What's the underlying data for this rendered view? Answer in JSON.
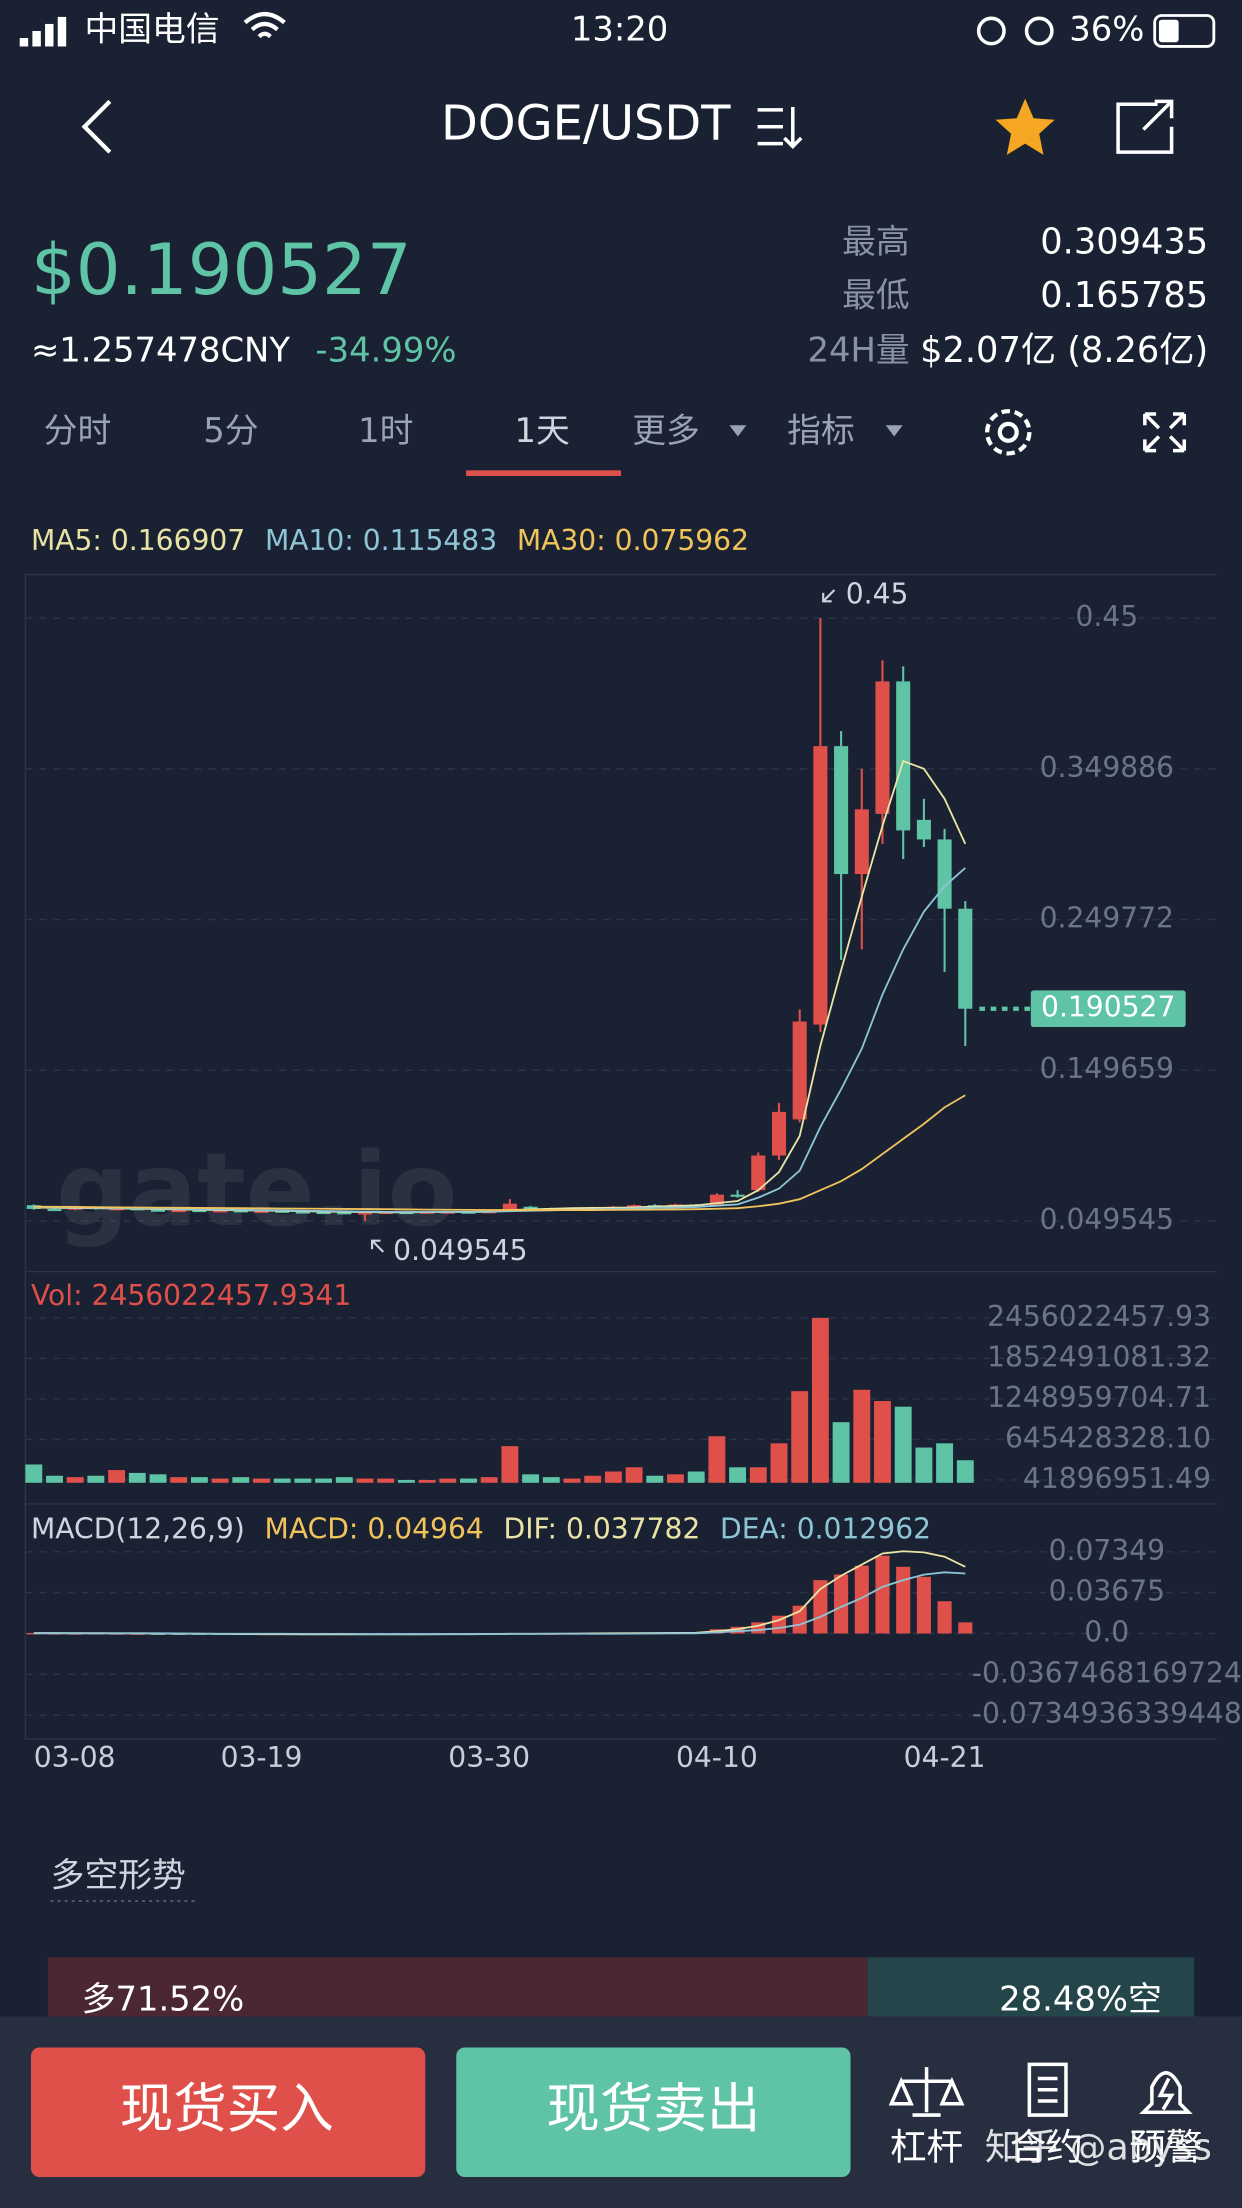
{
  "status_bar": {
    "carrier": "中国电信",
    "time": "13:20",
    "battery": "36%"
  },
  "header": {
    "title": "DOGE/USDT"
  },
  "ticker": {
    "price": "$0.190527",
    "cny": "≈1.257478CNY",
    "change": "-34.99%",
    "stats": [
      {
        "label": "最高",
        "value": "0.309435"
      },
      {
        "label": "最低",
        "value": "0.165785"
      },
      {
        "label": "24H量",
        "value": "$2.07亿 (8.26亿)"
      }
    ]
  },
  "tabs": [
    "分时",
    "5分",
    "1时",
    "1天",
    "更多",
    "指标"
  ],
  "chart_data": [
    {
      "type": "candlestick",
      "watermark": "gate.io",
      "up_color": "#e0504a",
      "down_color": "#5ec4a5",
      "grid": true,
      "categories": [
        "03-08",
        null,
        null,
        null,
        null,
        null,
        null,
        null,
        null,
        null,
        null,
        "03-19",
        null,
        null,
        null,
        null,
        null,
        null,
        null,
        null,
        null,
        null,
        "03-30",
        null,
        null,
        null,
        null,
        null,
        null,
        null,
        null,
        null,
        null,
        "04-10",
        null,
        null,
        null,
        null,
        null,
        null,
        null,
        null,
        null,
        null,
        "04-21",
        null
      ],
      "open": [
        0.06,
        0.0575,
        0.057,
        0.059,
        0.0575,
        0.058,
        0.057,
        0.0565,
        0.0568,
        0.0562,
        0.0566,
        0.056,
        0.0563,
        0.0558,
        0.0555,
        0.0553,
        0.0548,
        0.0552,
        0.0555,
        0.0553,
        0.0556,
        0.0557,
        0.0555,
        0.056,
        0.059,
        0.058,
        0.0575,
        0.0578,
        0.0585,
        0.059,
        0.06,
        0.0598,
        0.0605,
        0.0598,
        0.067,
        0.07,
        0.093,
        0.117,
        0.18,
        0.365,
        0.28,
        0.32,
        0.408,
        0.316,
        0.303,
        0.257
      ],
      "high": [
        0.0605,
        0.058,
        0.0595,
        0.0592,
        0.0585,
        0.0583,
        0.0573,
        0.0572,
        0.057,
        0.0569,
        0.0568,
        0.0565,
        0.0565,
        0.056,
        0.0558,
        0.0556,
        0.0555,
        0.0558,
        0.0558,
        0.0559,
        0.056,
        0.056,
        0.0563,
        0.064,
        0.0595,
        0.0583,
        0.0582,
        0.059,
        0.0595,
        0.0605,
        0.0606,
        0.061,
        0.0608,
        0.068,
        0.07,
        0.095,
        0.128,
        0.19,
        0.45,
        0.375,
        0.35,
        0.422,
        0.418,
        0.33,
        0.31,
        0.262
      ],
      "low": [
        0.057,
        0.0565,
        0.0565,
        0.057,
        0.057,
        0.0567,
        0.056,
        0.056,
        0.0558,
        0.0558,
        0.0556,
        0.0555,
        0.0553,
        0.055,
        0.0548,
        0.0545,
        0.049545,
        0.0548,
        0.0549,
        0.055,
        0.0552,
        0.0551,
        0.0552,
        0.0555,
        0.0575,
        0.057,
        0.057,
        0.0575,
        0.058,
        0.0585,
        0.059,
        0.0592,
        0.059,
        0.0595,
        0.065,
        0.069,
        0.09,
        0.115,
        0.175,
        0.223,
        0.23,
        0.3,
        0.29,
        0.298,
        0.215,
        0.165785
      ],
      "close": [
        0.0575,
        0.057,
        0.059,
        0.0575,
        0.058,
        0.057,
        0.0565,
        0.0568,
        0.0562,
        0.0566,
        0.056,
        0.0563,
        0.0558,
        0.0555,
        0.0553,
        0.0548,
        0.0552,
        0.0555,
        0.0553,
        0.0556,
        0.0557,
        0.0555,
        0.056,
        0.061,
        0.058,
        0.0575,
        0.0578,
        0.0585,
        0.059,
        0.06,
        0.0598,
        0.0605,
        0.0598,
        0.067,
        0.066,
        0.093,
        0.122,
        0.182,
        0.365,
        0.28,
        0.323,
        0.408,
        0.309,
        0.303,
        0.257,
        0.190527
      ],
      "series": [
        {
          "name": "MA5: 0.166907",
          "color": "#e9e4a6",
          "values": [
            0.0585,
            0.0583,
            0.0581,
            0.058,
            0.0578,
            0.0576,
            0.0574,
            0.0572,
            0.057,
            0.0568,
            0.0566,
            0.0564,
            0.0562,
            0.056,
            0.0558,
            0.0556,
            0.0554,
            0.0553,
            0.0553,
            0.0554,
            0.0555,
            0.0556,
            0.0557,
            0.0568,
            0.0572,
            0.0576,
            0.058,
            0.0582,
            0.0583,
            0.0586,
            0.059,
            0.0595,
            0.0599,
            0.0614,
            0.0628,
            0.07,
            0.082,
            0.106,
            0.166,
            0.216,
            0.265,
            0.312,
            0.355,
            0.35,
            0.33,
            0.3
          ]
        },
        {
          "name": "MA10: 0.115483",
          "color": "#8ec5d6",
          "values": [
            0.0588,
            0.0586,
            0.0584,
            0.0583,
            0.0581,
            0.0579,
            0.0577,
            0.0575,
            0.0573,
            0.0571,
            0.0569,
            0.0567,
            0.0565,
            0.0563,
            0.0561,
            0.0559,
            0.0557,
            0.0556,
            0.0555,
            0.0555,
            0.0555,
            0.0555,
            0.0556,
            0.056,
            0.0563,
            0.0566,
            0.0569,
            0.0572,
            0.0575,
            0.0578,
            0.0582,
            0.0585,
            0.0588,
            0.0597,
            0.0605,
            0.065,
            0.071,
            0.083,
            0.112,
            0.137,
            0.164,
            0.2,
            0.23,
            0.255,
            0.272,
            0.284
          ]
        },
        {
          "name": "MA30: 0.075962",
          "color": "#f0c35b",
          "values": [
            0.059,
            0.0589,
            0.0588,
            0.0587,
            0.0586,
            0.0585,
            0.0584,
            0.0583,
            0.0582,
            0.0581,
            0.058,
            0.0579,
            0.0578,
            0.0577,
            0.0576,
            0.0575,
            0.0574,
            0.0573,
            0.0572,
            0.0571,
            0.057,
            0.0569,
            0.0568,
            0.0568,
            0.0568,
            0.0568,
            0.0568,
            0.0568,
            0.0569,
            0.057,
            0.0571,
            0.0572,
            0.0573,
            0.0576,
            0.058,
            0.0593,
            0.061,
            0.064,
            0.07,
            0.076,
            0.084,
            0.094,
            0.104,
            0.114,
            0.125,
            0.133
          ]
        }
      ],
      "ylim": [
        0.0159,
        0.479
      ],
      "yticks": [
        0.049545,
        0.149659,
        0.249772,
        0.349886,
        0.45
      ]
    },
    {
      "type": "bar",
      "title": "Vol: 2456022457.9341",
      "title_color": "#e0504a",
      "grid": true,
      "values": [
        273000000,
        105000000,
        84000000,
        105000000,
        189000000,
        147000000,
        126000000,
        84000000,
        84000000,
        63000000,
        84000000,
        63000000,
        63000000,
        63000000,
        63000000,
        84000000,
        63000000,
        63000000,
        42000000,
        42000000,
        63000000,
        63000000,
        84000000,
        546000000,
        126000000,
        84000000,
        63000000,
        105000000,
        168000000,
        231000000,
        105000000,
        126000000,
        168000000,
        693000000,
        231000000,
        231000000,
        588000000,
        1365000000,
        2456022457.9341,
        903000000,
        1386000000,
        1218000000,
        1134000000,
        525000000,
        588000000,
        336000000
      ],
      "ylim": [
        -252000000,
        3000000000
      ],
      "yticks": [
        41896951.49,
        {
          "value": 645428328.1,
          "label": "645428328.10"
        },
        1248959704.71,
        1852491081.32,
        2456022457.93
      ]
    },
    {
      "type": "macd",
      "title": "MACD(12,26,9)",
      "up_color": "#e0504a",
      "down_color": "#5ec4a5",
      "grid": true,
      "series": [
        {
          "name": "MACD: 0.04964",
          "color": "#f0c35b",
          "values": [
            0.0004,
            0.0003,
            0.0002,
            0.0003,
            0.0002,
            0.0001,
            -0.0002,
            -0.0003,
            -0.0004,
            -0.0005,
            -0.0005,
            -0.0006,
            -0.0006,
            -0.0006,
            -0.0006,
            -0.0006,
            -0.0007,
            -0.0006,
            -0.0005,
            -0.0005,
            -0.0004,
            -0.0004,
            -0.0003,
            0.0003,
            0.0002,
            0.0001,
            0.0002,
            0.0003,
            0.0004,
            0.0006,
            0.0006,
            0.0007,
            0.0008,
            0.0038,
            0.006,
            0.01,
            0.016,
            0.025,
            0.048,
            0.053,
            0.061,
            0.07,
            0.06,
            0.051,
            0.029,
            0.01
          ]
        },
        {
          "name": "DIF: 0.037782",
          "color": "#e9e4a6",
          "values": [
            0.0004,
            0.0004,
            0.0003,
            0.0003,
            0.0002,
            0.0001,
            0,
            -0.0002,
            -0.0003,
            -0.0004,
            -0.0005,
            -0.0006,
            -0.0006,
            -0.0007,
            -0.0007,
            -0.0007,
            -0.0008,
            -0.0008,
            -0.0007,
            -0.0007,
            -0.0006,
            -0.0006,
            -0.0005,
            -0.0002,
            -0.0002,
            -0.0002,
            -0.0001,
            0,
            0.0001,
            0.0003,
            0.0004,
            0.0005,
            0.0006,
            0.002,
            0.004,
            0.007,
            0.012,
            0.02,
            0.04,
            0.052,
            0.062,
            0.072,
            0.074,
            0.073,
            0.069,
            0.06
          ]
        },
        {
          "name": "DEA: 0.012962",
          "color": "#8ec5d6",
          "values": [
            0.0002,
            0.0002,
            0.0002,
            0.0002,
            0.0002,
            0.0001,
            0.0001,
            0,
            -0.0001,
            -0.0002,
            -0.0002,
            -0.0003,
            -0.0003,
            -0.0004,
            -0.0004,
            -0.0004,
            -0.0005,
            -0.0005,
            -0.0005,
            -0.0005,
            -0.0005,
            -0.0005,
            -0.0005,
            -0.0004,
            -0.0004,
            -0.0003,
            -0.0003,
            -0.0002,
            -0.0002,
            -0.0001,
            0,
            0.0001,
            0.0002,
            0.001,
            0.002,
            0.003,
            0.005,
            0.008,
            0.015,
            0.024,
            0.032,
            0.042,
            0.048,
            0.053,
            0.055,
            0.054
          ]
        }
      ],
      "ylim": [
        -0.0912,
        0.1115
      ],
      "yticks": [
        -0.0734936339448,
        -0.0367468169724,
        {
          "value": 0,
          "label": "0.0"
        },
        0.03675,
        0.07349
      ]
    }
  ],
  "sentiment": {
    "title": "多空形势",
    "values": [
      71.52,
      28.48
    ],
    "value_labels": [
      "多71.52%",
      "28.48%空"
    ],
    "colors": [
      "#4a2733",
      "#24454a"
    ]
  },
  "actions": {
    "buy": "现货买入",
    "sell": "现货卖出",
    "tools": [
      "杠杆",
      "合约",
      "预警"
    ]
  },
  "watermark": "知乎 @abyss"
}
